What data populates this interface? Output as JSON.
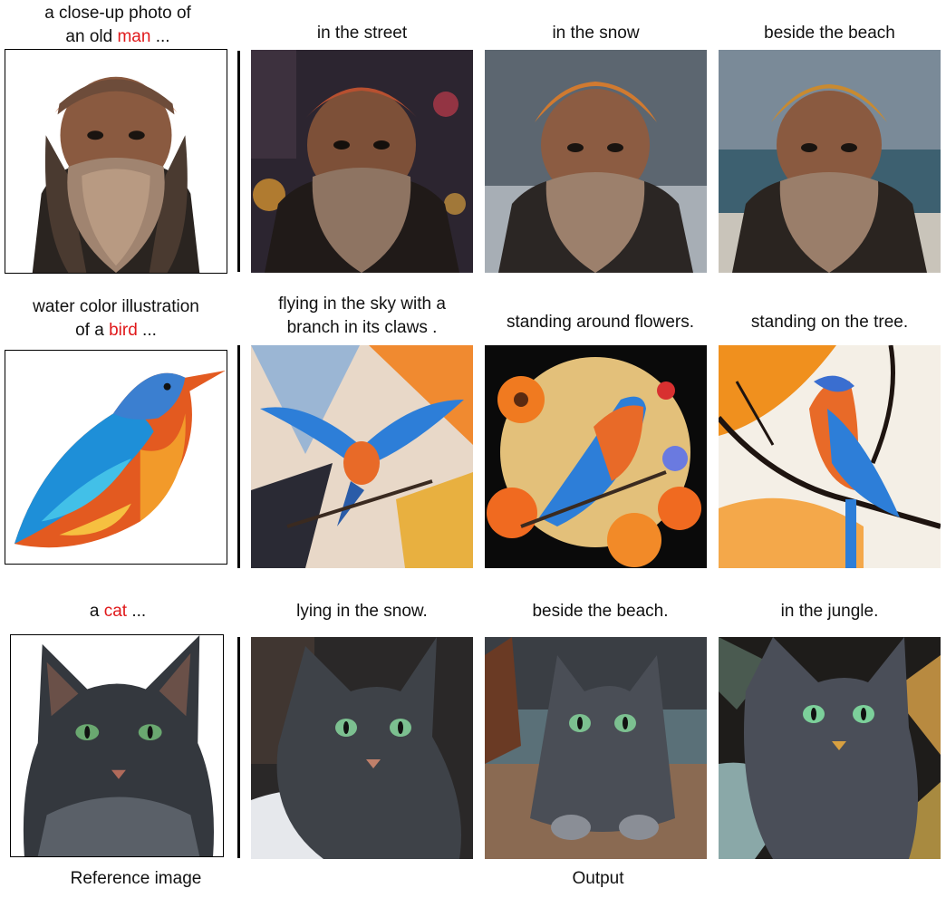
{
  "rows": [
    {
      "reference_caption": {
        "pre": "a close-up photo of",
        "line2_pre": "an old ",
        "subject": "man",
        "post": " ..."
      },
      "outputs": [
        "in the street",
        "in the snow",
        "beside the beach"
      ]
    },
    {
      "reference_caption": {
        "pre": "water color illustration",
        "line2_pre": "of a ",
        "subject": "bird",
        "post": " ..."
      },
      "outputs": [
        "flying in the sky with a",
        "standing around flowers.",
        "standing on the tree."
      ],
      "outputs_line2": [
        "branch in its claws .",
        "",
        ""
      ]
    },
    {
      "reference_caption": {
        "pre": "",
        "line2_pre": "a ",
        "subject": "cat",
        "post": " ..."
      },
      "outputs": [
        "lying in the snow.",
        "beside the beach.",
        "in the jungle."
      ]
    }
  ],
  "footer": {
    "left": "Reference image",
    "right": "Output"
  },
  "colors": {
    "highlight": "#e0191b"
  }
}
